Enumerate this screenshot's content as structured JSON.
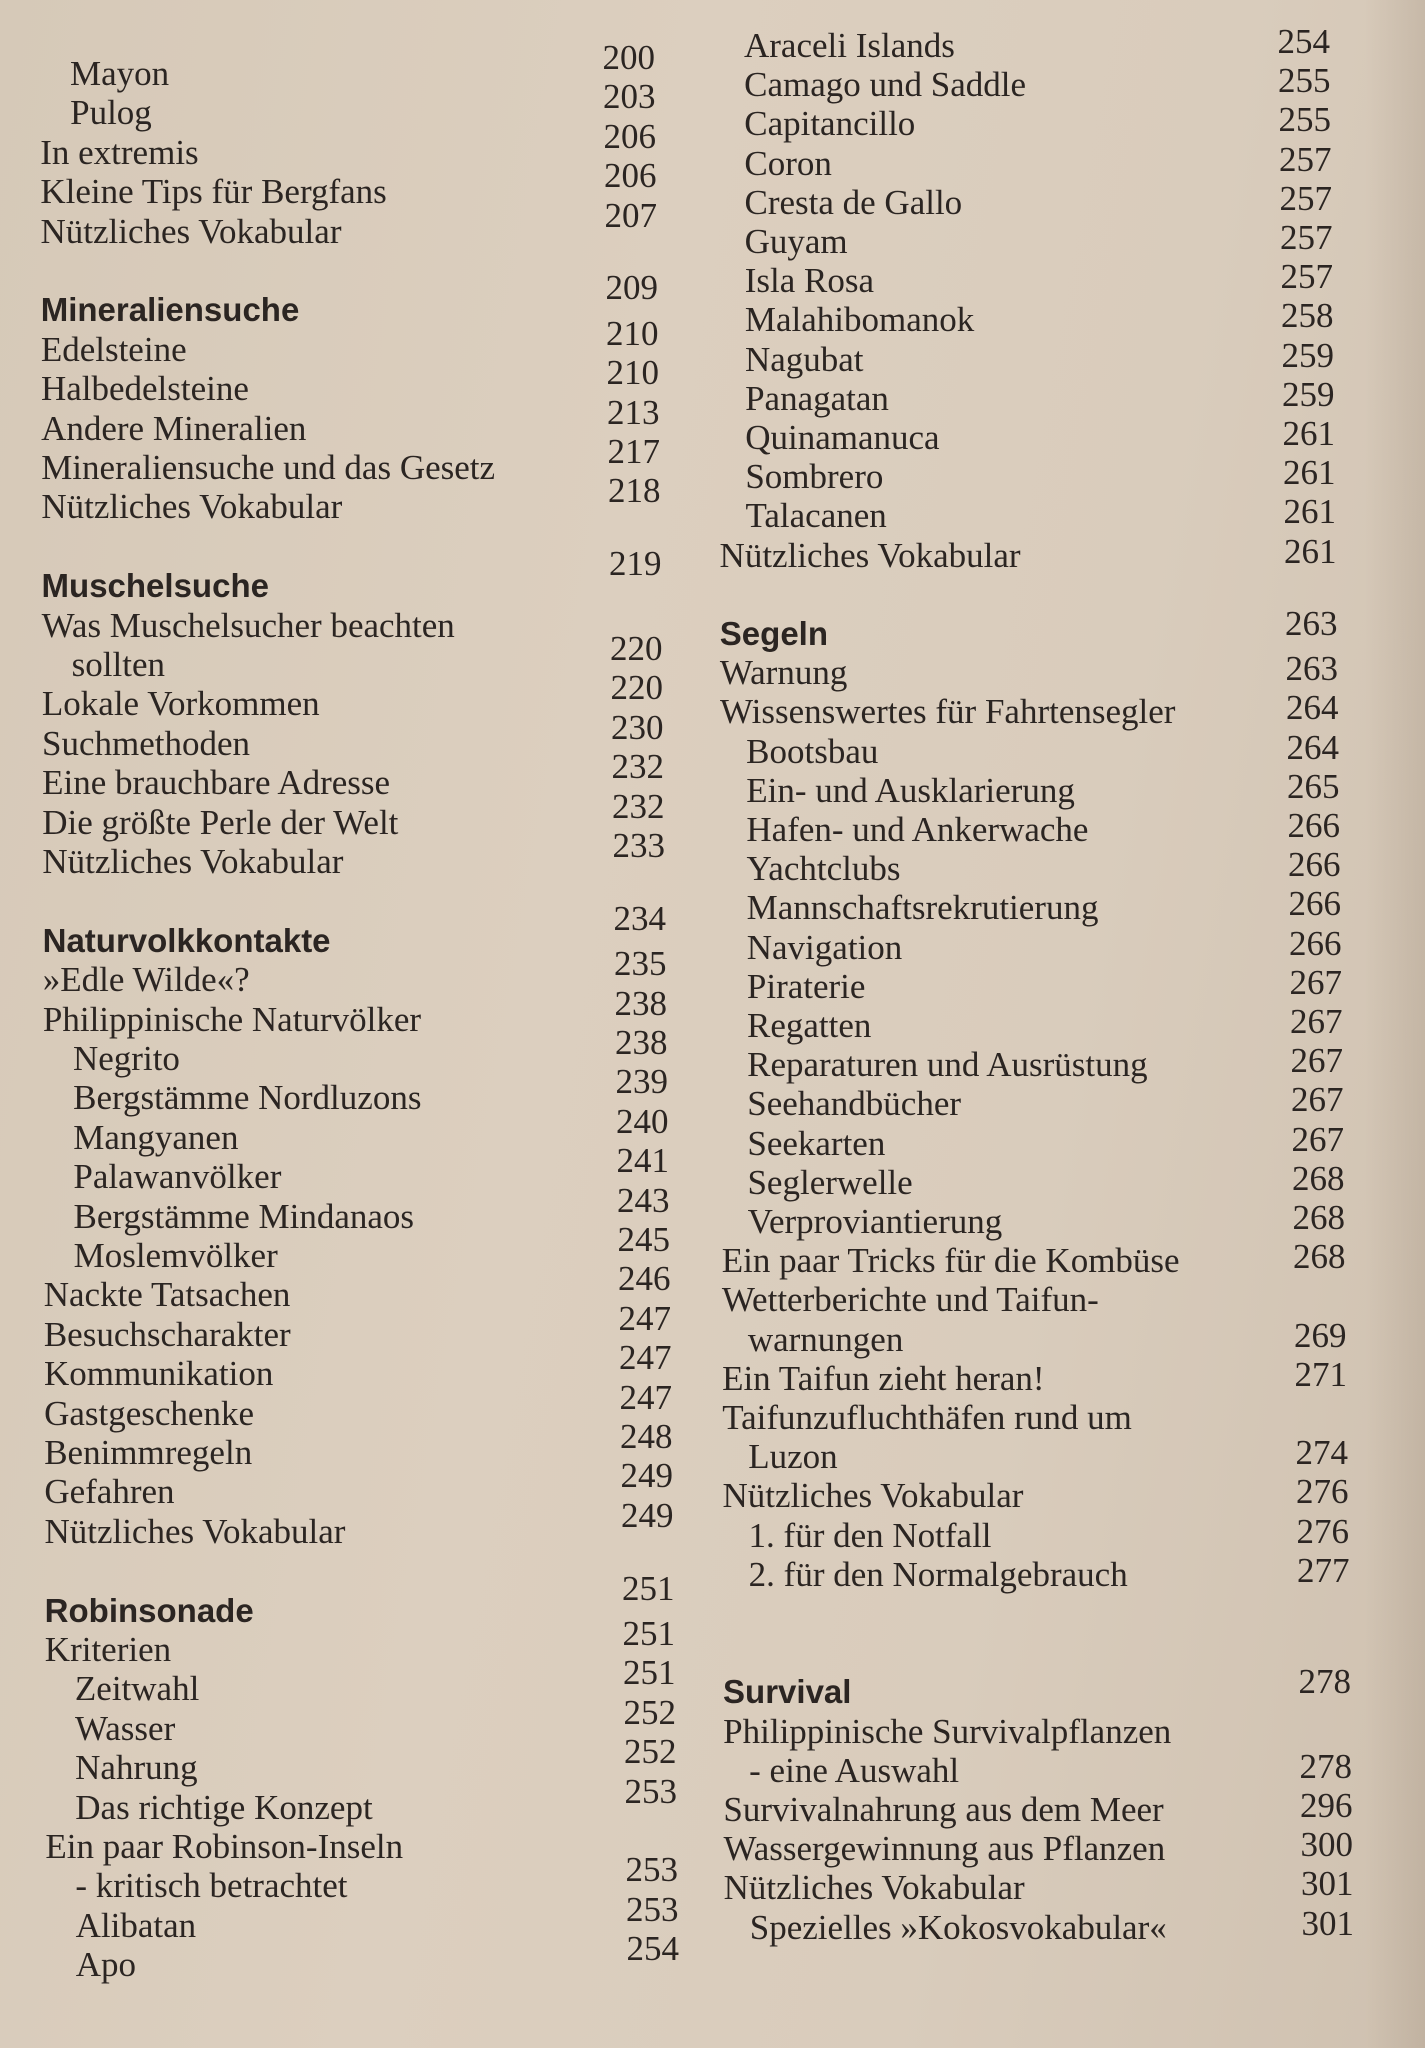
{
  "toc": {
    "left": [
      {
        "lines": [
          "Mayon"
        ],
        "page": "200",
        "level": 1
      },
      {
        "lines": [
          "Pulog"
        ],
        "page": "203",
        "level": 1
      },
      {
        "lines": [
          "In extremis"
        ],
        "page": "206",
        "level": 0
      },
      {
        "lines": [
          "Kleine Tips für Bergfans"
        ],
        "page": "206",
        "level": 0
      },
      {
        "lines": [
          "Nützliches Vokabular"
        ],
        "page": "207",
        "level": 0
      },
      {
        "lines": [
          "Mineraliensuche"
        ],
        "page": "209",
        "level": 0,
        "heading": true
      },
      {
        "lines": [
          "Edelsteine"
        ],
        "page": "210",
        "level": 0
      },
      {
        "lines": [
          "Halbedelsteine"
        ],
        "page": "210",
        "level": 0
      },
      {
        "lines": [
          "Andere Mineralien"
        ],
        "page": "213",
        "level": 0
      },
      {
        "lines": [
          "Mineraliensuche und das Gesetz"
        ],
        "page": "217",
        "level": 0
      },
      {
        "lines": [
          "Nützliches Vokabular"
        ],
        "page": "218",
        "level": 0
      },
      {
        "lines": [
          "Muschelsuche"
        ],
        "page": "219",
        "level": 0,
        "heading": true
      },
      {
        "lines": [
          "Was Muschelsucher beachten",
          "sollten"
        ],
        "page": "220",
        "level": 0
      },
      {
        "lines": [
          "Lokale Vorkommen"
        ],
        "page": "220",
        "level": 0
      },
      {
        "lines": [
          "Suchmethoden"
        ],
        "page": "230",
        "level": 0
      },
      {
        "lines": [
          "Eine brauchbare Adresse"
        ],
        "page": "232",
        "level": 0
      },
      {
        "lines": [
          "Die größte Perle der Welt"
        ],
        "page": "232",
        "level": 0
      },
      {
        "lines": [
          "Nützliches Vokabular"
        ],
        "page": "233",
        "level": 0
      },
      {
        "lines": [
          "Naturvolkkontakte"
        ],
        "page": "234",
        "level": 0,
        "heading": true
      },
      {
        "lines": [
          "»Edle Wilde«?"
        ],
        "page": "235",
        "level": 0
      },
      {
        "lines": [
          "Philippinische Naturvölker"
        ],
        "page": "238",
        "level": 0
      },
      {
        "lines": [
          "Negrito"
        ],
        "page": "238",
        "level": 1
      },
      {
        "lines": [
          "Bergstämme Nordluzons"
        ],
        "page": "239",
        "level": 1
      },
      {
        "lines": [
          "Mangyanen"
        ],
        "page": "240",
        "level": 1
      },
      {
        "lines": [
          "Palawanvölker"
        ],
        "page": "241",
        "level": 1
      },
      {
        "lines": [
          "Bergstämme Mindanaos"
        ],
        "page": "243",
        "level": 1
      },
      {
        "lines": [
          "Moslemvölker"
        ],
        "page": "245",
        "level": 1
      },
      {
        "lines": [
          "Nackte Tatsachen"
        ],
        "page": "246",
        "level": 0
      },
      {
        "lines": [
          "Besuchscharakter"
        ],
        "page": "247",
        "level": 0
      },
      {
        "lines": [
          "Kommunikation"
        ],
        "page": "247",
        "level": 0
      },
      {
        "lines": [
          "Gastgeschenke"
        ],
        "page": "247",
        "level": 0
      },
      {
        "lines": [
          "Benimmregeln"
        ],
        "page": "248",
        "level": 0
      },
      {
        "lines": [
          "Gefahren"
        ],
        "page": "249",
        "level": 0
      },
      {
        "lines": [
          "Nützliches Vokabular"
        ],
        "page": "249",
        "level": 0
      },
      {
        "lines": [
          "Robinsonade"
        ],
        "page": "251",
        "level": 0,
        "heading": true
      },
      {
        "lines": [
          "Kriterien"
        ],
        "page": "251",
        "level": 0
      },
      {
        "lines": [
          "Zeitwahl"
        ],
        "page": "251",
        "level": 1
      },
      {
        "lines": [
          "Wasser"
        ],
        "page": "252",
        "level": 1
      },
      {
        "lines": [
          "Nahrung"
        ],
        "page": "252",
        "level": 1
      },
      {
        "lines": [
          "Das richtige Konzept"
        ],
        "page": "253",
        "level": 1
      },
      {
        "lines": [
          "Ein paar Robinson-Inseln",
          "- kritisch betrachtet"
        ],
        "page": "253",
        "level": 0
      },
      {
        "lines": [
          "Alibatan"
        ],
        "page": "253",
        "level": 1
      },
      {
        "lines": [
          "Apo"
        ],
        "page": "254",
        "level": 1
      }
    ],
    "right": [
      {
        "lines": [
          "Araceli Islands"
        ],
        "page": "254",
        "level": 1
      },
      {
        "lines": [
          "Camago und Saddle"
        ],
        "page": "255",
        "level": 1
      },
      {
        "lines": [
          "Capitancillo"
        ],
        "page": "255",
        "level": 1
      },
      {
        "lines": [
          "Coron"
        ],
        "page": "257",
        "level": 1
      },
      {
        "lines": [
          "Cresta de Gallo"
        ],
        "page": "257",
        "level": 1
      },
      {
        "lines": [
          "Guyam"
        ],
        "page": "257",
        "level": 1
      },
      {
        "lines": [
          "Isla Rosa"
        ],
        "page": "257",
        "level": 1
      },
      {
        "lines": [
          "Malahibomanok"
        ],
        "page": "258",
        "level": 1
      },
      {
        "lines": [
          "Nagubat"
        ],
        "page": "259",
        "level": 1
      },
      {
        "lines": [
          "Panagatan"
        ],
        "page": "259",
        "level": 1
      },
      {
        "lines": [
          "Quinamanuca"
        ],
        "page": "261",
        "level": 1
      },
      {
        "lines": [
          "Sombrero"
        ],
        "page": "261",
        "level": 1
      },
      {
        "lines": [
          "Talacanen"
        ],
        "page": "261",
        "level": 1
      },
      {
        "lines": [
          "Nützliches Vokabular"
        ],
        "page": "261",
        "level": 0
      },
      {
        "lines": [
          "Segeln"
        ],
        "page": "263",
        "level": 0,
        "heading": true
      },
      {
        "lines": [
          "Warnung"
        ],
        "page": "263",
        "level": 0
      },
      {
        "lines": [
          "Wissenswertes für Fahrtensegler"
        ],
        "page": "264",
        "level": 0
      },
      {
        "lines": [
          "Bootsbau"
        ],
        "page": "264",
        "level": 1
      },
      {
        "lines": [
          "Ein- und Ausklarierung"
        ],
        "page": "265",
        "level": 1
      },
      {
        "lines": [
          "Hafen- und Ankerwache"
        ],
        "page": "266",
        "level": 1
      },
      {
        "lines": [
          "Yachtclubs"
        ],
        "page": "266",
        "level": 1
      },
      {
        "lines": [
          "Mannschaftsrekrutierung"
        ],
        "page": "266",
        "level": 1
      },
      {
        "lines": [
          "Navigation"
        ],
        "page": "266",
        "level": 1
      },
      {
        "lines": [
          "Piraterie"
        ],
        "page": "267",
        "level": 1
      },
      {
        "lines": [
          "Regatten"
        ],
        "page": "267",
        "level": 1
      },
      {
        "lines": [
          "Reparaturen und Ausrüstung"
        ],
        "page": "267",
        "level": 1
      },
      {
        "lines": [
          "Seehandbücher"
        ],
        "page": "267",
        "level": 1
      },
      {
        "lines": [
          "Seekarten"
        ],
        "page": "267",
        "level": 1
      },
      {
        "lines": [
          "Seglerwelle"
        ],
        "page": "268",
        "level": 1
      },
      {
        "lines": [
          "Verproviantierung"
        ],
        "page": "268",
        "level": 1
      },
      {
        "lines": [
          "Ein paar Tricks für die Kombüse"
        ],
        "page": "268",
        "level": 0
      },
      {
        "lines": [
          "Wetterberichte und Taifun-",
          "warnungen"
        ],
        "page": "269",
        "level": 0
      },
      {
        "lines": [
          "Ein Taifun zieht heran!"
        ],
        "page": "271",
        "level": 0
      },
      {
        "lines": [
          "Taifunzufluchthäfen rund um",
          "Luzon"
        ],
        "page": "274",
        "level": 0
      },
      {
        "lines": [
          "Nützliches Vokabular"
        ],
        "page": "276",
        "level": 0
      },
      {
        "lines": [
          "1. für den Notfall"
        ],
        "page": "276",
        "level": 1
      },
      {
        "lines": [
          "2. für den Normalgebrauch"
        ],
        "page": "277",
        "level": 1
      },
      {
        "lines": [
          "Survival"
        ],
        "page": "278",
        "level": 0,
        "heading": true
      },
      {
        "lines": [
          "Philippinische Survivalpflanzen",
          "- eine Auswahl"
        ],
        "page": "278",
        "level": 0
      },
      {
        "lines": [
          "Survivalnahrung aus dem Meer"
        ],
        "page": "296",
        "level": 0
      },
      {
        "lines": [
          "Wassergewinnung aus Pflanzen"
        ],
        "page": "300",
        "level": 0
      },
      {
        "lines": [
          "Nützliches Vokabular"
        ],
        "page": "301",
        "level": 0
      },
      {
        "lines": [
          "Spezielles »Kokosvokabular«"
        ],
        "page": "301",
        "level": 1
      }
    ]
  }
}
